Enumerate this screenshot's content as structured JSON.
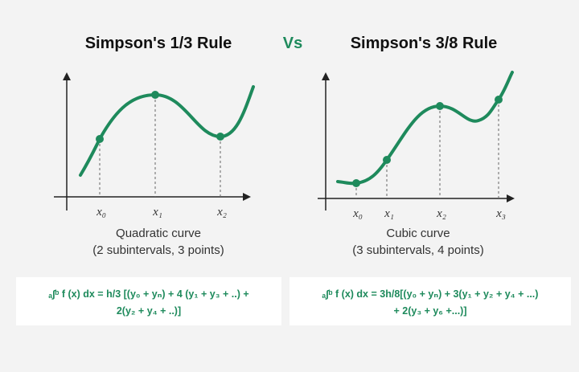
{
  "left": {
    "title": "Simpson's 1/3 Rule",
    "labels": [
      "x₀",
      "x₁",
      "x₂"
    ],
    "caption": "Quadratic curve",
    "subcaption": "(2 subintervals, 3 points)",
    "formula": [
      "ₐ∫ᵇ f (x) dx = h/3 [(y₀ + yₙ) + 4 (y₁ + y₃ + ..) +",
      "2(y₂ + y₄ + ..)]"
    ]
  },
  "vs": "Vs",
  "right": {
    "title": "Simpson's 3/8 Rule",
    "labels": [
      "x₀",
      "x₁",
      "x₂",
      "x₃"
    ],
    "caption": "Cubic curve",
    "subcaption": "(3 subintervals, 4 points)",
    "formula": [
      "ₐ∫ᵇ f (x) dx = 3h/8[(y₀ + yₙ) + 3(y₁ + y₂ + y₄ + ...)",
      "+ 2(y₃ + y₆ +...)]"
    ]
  }
}
